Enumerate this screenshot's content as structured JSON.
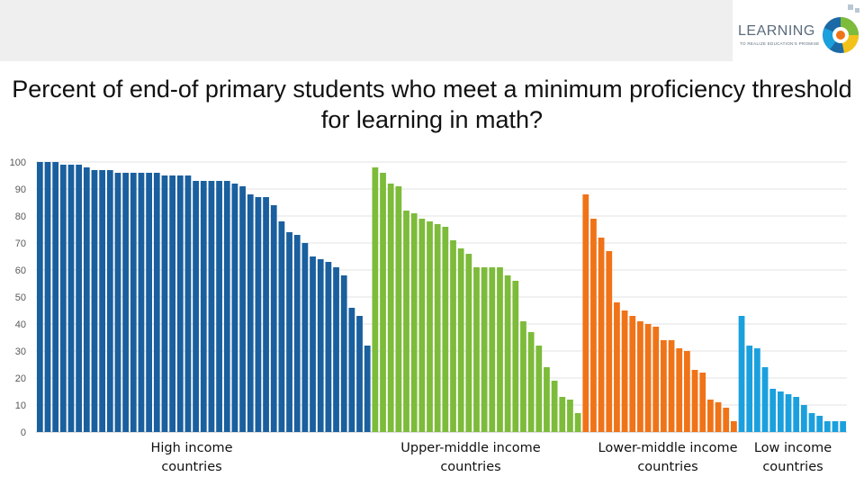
{
  "header": {
    "logo_text": "LEARNING",
    "logo_tagline": "TO REALIZE EDUCATION'S PROMISE",
    "colors": {
      "band": "#efefef"
    }
  },
  "chart_data": {
    "type": "bar",
    "title": "Percent of end-of primary students who meet a minimum proficiency threshold for learning in math?",
    "xlabel": "",
    "ylabel": "",
    "ylim": [
      0,
      100
    ],
    "yticks": [
      0,
      10,
      20,
      30,
      40,
      50,
      60,
      70,
      80,
      90,
      100
    ],
    "grid": true,
    "legend": "none",
    "series": [
      {
        "name": "High income countries",
        "color": "#1a5f9e",
        "values": [
          100,
          100,
          100,
          99,
          99,
          99,
          98,
          97,
          97,
          97,
          96,
          96,
          96,
          96,
          96,
          96,
          95,
          95,
          95,
          95,
          93,
          93,
          93,
          93,
          93,
          92,
          91,
          88,
          87,
          87,
          84,
          78,
          74,
          73,
          70,
          65,
          64,
          63,
          61,
          58,
          46,
          43,
          32
        ]
      },
      {
        "name": "Upper-middle income countries",
        "color": "#7dbb3a",
        "values": [
          98,
          96,
          92,
          91,
          82,
          81,
          79,
          78,
          77,
          76,
          71,
          68,
          66,
          61,
          61,
          61,
          61,
          58,
          56,
          41,
          37,
          32,
          24,
          19,
          13,
          12,
          7
        ]
      },
      {
        "name": "Lower-middle income countries",
        "color": "#f07318",
        "values": [
          88,
          79,
          72,
          67,
          48,
          45,
          43,
          41,
          40,
          39,
          34,
          34,
          31,
          30,
          23,
          22,
          12,
          11,
          9,
          4
        ]
      },
      {
        "name": "Low income countries",
        "color": "#1ba0de",
        "values": [
          43,
          32,
          31,
          24,
          16,
          15,
          14,
          13,
          10,
          7,
          6,
          4,
          4,
          4
        ]
      }
    ]
  },
  "group_labels": [
    {
      "line1": "High income",
      "line2": "countries"
    },
    {
      "line1": "Upper-middle income",
      "line2": "countries"
    },
    {
      "line1": "Lower-middle income",
      "line2": "countries"
    },
    {
      "line1": "Low income",
      "line2": "countries"
    }
  ]
}
